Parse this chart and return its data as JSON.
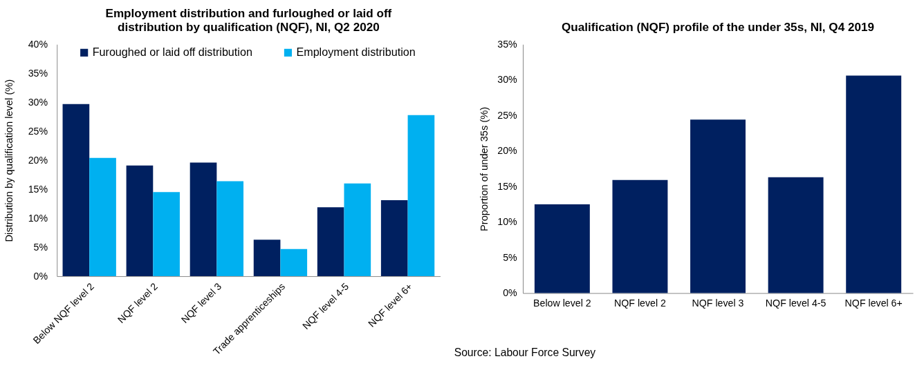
{
  "chart_data": [
    {
      "type": "bar",
      "title": "Employment distribution and furloughed or laid off distribution by qualification (NQF), NI, Q2 2020",
      "ylabel": "Distribution by qualification level (%)",
      "categories": [
        "Below NQF level 2",
        "NQF level 2",
        "NQF level 3",
        "Trade apprenticeships",
        "NQF level 4-5",
        "NQF level 6+"
      ],
      "series": [
        {
          "name": "Furoughed or laid off distribution",
          "color": "#002060",
          "values": [
            29.7,
            19.1,
            19.6,
            6.3,
            11.9,
            13.1
          ]
        },
        {
          "name": "Employment distribution",
          "color": "#00b0f0",
          "values": [
            20.4,
            14.5,
            16.4,
            4.7,
            16.0,
            27.8
          ]
        }
      ],
      "ylim": [
        0,
        40
      ],
      "yticks": [
        {
          "value": 0,
          "label": "0%"
        },
        {
          "value": 5,
          "label": "5%"
        },
        {
          "value": 10,
          "label": "10%"
        },
        {
          "value": 15,
          "label": "15%"
        },
        {
          "value": 20,
          "label": "20%"
        },
        {
          "value": 25,
          "label": "25%"
        },
        {
          "value": 30,
          "label": "30%"
        },
        {
          "value": 35,
          "label": "35%"
        },
        {
          "value": 40,
          "label": "40%"
        }
      ],
      "grid": false,
      "legend": "top"
    },
    {
      "type": "bar",
      "title": "Qualification (NQF) profile of the under 35s, NI, Q4 2019",
      "ylabel": "Proportion of under 35s (%)",
      "categories": [
        "Below level 2",
        "NQF level 2",
        "NQF level 3",
        "NQF level 4-5",
        "NQF level 6+"
      ],
      "values": [
        12.5,
        15.9,
        24.4,
        16.3,
        30.6
      ],
      "color": "#002060",
      "ylim": [
        0,
        35
      ],
      "yticks": [
        {
          "value": 0,
          "label": "0%"
        },
        {
          "value": 5,
          "label": "5%"
        },
        {
          "value": 10,
          "label": "10%"
        },
        {
          "value": 15,
          "label": "15%"
        },
        {
          "value": 20,
          "label": "20%"
        },
        {
          "value": 25,
          "label": "25%"
        },
        {
          "value": 30,
          "label": "30%"
        },
        {
          "value": 35,
          "label": "35%"
        }
      ],
      "grid": false,
      "annotations": [
        "Source: Labour Force Survey"
      ]
    }
  ]
}
